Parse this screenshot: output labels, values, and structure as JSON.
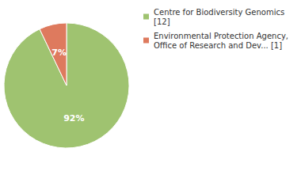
{
  "chart_data": {
    "type": "pie",
    "categories": [
      "Centre for Biodiversity Genomics [12]",
      "Environmental Protection Agency, Office of Research and Dev... [1]"
    ],
    "values": [
      92,
      7
    ],
    "value_labels": [
      "92%",
      "7%"
    ],
    "colors": [
      "#9fc370",
      "#de7a5e"
    ],
    "data_labels": true,
    "legend": "top-right"
  }
}
